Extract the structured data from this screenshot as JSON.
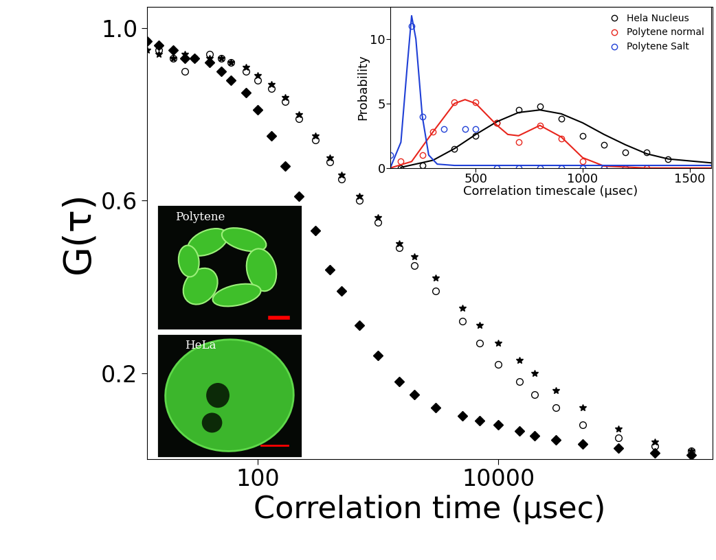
{
  "chart_data": [
    {
      "type": "scatter",
      "x_label": "Correlation time (μsec)",
      "y_label": "G(τ)",
      "log": "x",
      "xlim": [
        12,
        600000
      ],
      "ylim": [
        0,
        1.05
      ],
      "xticks": [
        100,
        10000
      ],
      "yticks": [
        0.2,
        0.6,
        1.0
      ],
      "x": [
        12,
        15,
        20,
        25,
        30,
        40,
        50,
        60,
        80,
        100,
        130,
        170,
        220,
        300,
        400,
        500,
        700,
        1000,
        1500,
        2000,
        3000,
        5000,
        7000,
        10000,
        15000,
        20000,
        30000,
        50000,
        100000,
        200000,
        400000
      ],
      "series": [
        {
          "color": "#000000",
          "marker": "diamond",
          "values": [
            0.97,
            0.96,
            0.95,
            0.93,
            0.93,
            0.92,
            0.9,
            0.88,
            0.85,
            0.81,
            0.75,
            0.68,
            0.61,
            0.53,
            0.44,
            0.39,
            0.31,
            0.24,
            0.18,
            0.15,
            0.12,
            0.1,
            0.09,
            0.08,
            0.065,
            0.055,
            0.045,
            0.035,
            0.025,
            0.015,
            0.01
          ]
        },
        {
          "color": "#000000",
          "marker": "circle_open",
          "values": [
            0.97,
            0.95,
            0.93,
            0.9,
            0.93,
            0.94,
            0.93,
            0.92,
            0.9,
            0.88,
            0.86,
            0.83,
            0.79,
            0.74,
            0.69,
            0.65,
            0.6,
            0.55,
            0.49,
            0.45,
            0.39,
            0.32,
            0.27,
            0.22,
            0.18,
            0.15,
            0.12,
            0.08,
            0.05,
            0.03,
            0.02
          ]
        },
        {
          "color": "#000000",
          "marker": "star",
          "values": [
            0.95,
            0.94,
            0.93,
            0.94,
            0.93,
            0.93,
            0.93,
            0.92,
            0.91,
            0.89,
            0.87,
            0.84,
            0.8,
            0.75,
            0.7,
            0.66,
            0.61,
            0.56,
            0.5,
            0.47,
            0.42,
            0.35,
            0.31,
            0.27,
            0.23,
            0.2,
            0.16,
            0.12,
            0.07,
            0.04,
            0.02
          ]
        }
      ]
    },
    {
      "type": "scatter",
      "x_label": "Correlation timescale (μsec)",
      "y_label": "Probability",
      "xlim": [
        100,
        1600
      ],
      "ylim": [
        0,
        12.5
      ],
      "xticks": [
        500,
        1000,
        1500
      ],
      "yticks": [
        0,
        5,
        10
      ],
      "legend": "upper right",
      "series": [
        {
          "name": "Hela Nucleus",
          "type": "scatter",
          "color": "#000000",
          "marker": "circle_open",
          "x": [
            150,
            250,
            400,
            500,
            600,
            700,
            800,
            900,
            1000,
            1100,
            1200,
            1300,
            1400
          ],
          "values": [
            0,
            0.2,
            1.5,
            2.5,
            3.5,
            4.5,
            4.8,
            3.8,
            2.5,
            1.8,
            1.2,
            1.2,
            0.7
          ]
        },
        {
          "name": "Polytene normal",
          "type": "scatter",
          "color": "#e8251c",
          "marker": "circle_open",
          "x": [
            150,
            250,
            300,
            400,
            500,
            600,
            700,
            800,
            900,
            1000,
            1100,
            1200,
            1300
          ],
          "values": [
            0.5,
            1,
            2.8,
            5.1,
            5.1,
            3.5,
            2,
            3.3,
            2.3,
            0.5,
            0,
            0,
            0
          ]
        },
        {
          "name": "Polytene Salt",
          "type": "scatter",
          "color": "#1f3fd6",
          "marker": "circle_open",
          "x": [
            100,
            200,
            250,
            350,
            450,
            500,
            600,
            700,
            800,
            900,
            1000,
            1100,
            1200
          ],
          "values": [
            1,
            11,
            4,
            3,
            3,
            3,
            0,
            0,
            0,
            0,
            0,
            0,
            0
          ]
        },
        {
          "type": "line",
          "color": "#000000",
          "x": [
            150,
            300,
            400,
            500,
            600,
            700,
            800,
            900,
            1000,
            1100,
            1200,
            1300,
            1400,
            1600
          ],
          "values": [
            0.05,
            0.6,
            1.5,
            2.6,
            3.6,
            4.3,
            4.5,
            4.2,
            3.5,
            2.6,
            1.8,
            1.1,
            0.7,
            0.4
          ]
        },
        {
          "type": "line",
          "color": "#e8251c",
          "x": [
            100,
            200,
            300,
            400,
            450,
            500,
            600,
            650,
            700,
            800,
            900,
            1000,
            1100,
            1300,
            1600
          ],
          "values": [
            0,
            0.5,
            2.8,
            5,
            5.3,
            5,
            3.3,
            2.6,
            2.5,
            3.3,
            2.4,
            0.8,
            0.15,
            0,
            0
          ]
        },
        {
          "type": "line",
          "color": "#1f3fd6",
          "x": [
            100,
            150,
            180,
            200,
            220,
            250,
            280,
            320,
            400,
            800,
            1600
          ],
          "values": [
            0,
            2,
            8,
            11.8,
            10,
            4,
            1,
            0.3,
            0.2,
            0.2,
            0.2
          ]
        }
      ]
    }
  ],
  "images": [
    {
      "label": "Polytene"
    },
    {
      "label": "HeLa"
    }
  ]
}
